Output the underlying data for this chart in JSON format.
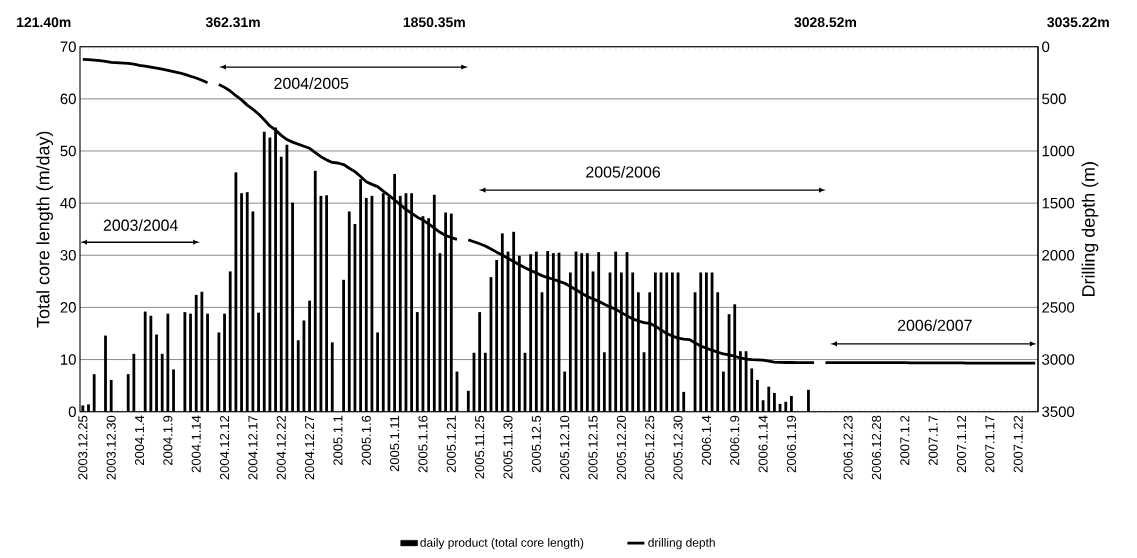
{
  "chart_data": {
    "type": "bar",
    "categories": [
      "2003.12.25",
      null,
      null,
      null,
      null,
      "2003.12.30",
      null,
      null,
      null,
      null,
      "2004.1.4",
      null,
      null,
      null,
      null,
      "2004.1.9",
      null,
      null,
      null,
      null,
      "2004.1.14",
      null,
      null,
      null,
      null,
      "2004.12.12",
      null,
      null,
      null,
      null,
      "2004.12.17",
      null,
      null,
      null,
      null,
      "2004.12.22",
      null,
      null,
      null,
      null,
      "2004.12.27",
      null,
      null,
      null,
      null,
      "2005.1.1",
      null,
      null,
      null,
      null,
      "2005.1.6",
      null,
      null,
      null,
      null,
      "2005.1.11",
      null,
      null,
      null,
      null,
      "2005.1.16",
      null,
      null,
      null,
      null,
      "2005.1.21",
      null,
      null,
      null,
      null,
      "2005.11.25",
      null,
      null,
      null,
      null,
      "2005.11.30",
      null,
      null,
      null,
      null,
      "2005.12.5",
      null,
      null,
      null,
      null,
      "2005.12.10",
      null,
      null,
      null,
      null,
      "2005.12.15",
      null,
      null,
      null,
      null,
      "2005.12.20",
      null,
      null,
      null,
      null,
      "2005.12.25",
      null,
      null,
      null,
      null,
      "2005.12.30",
      null,
      null,
      null,
      null,
      "2006.1.4",
      null,
      null,
      null,
      null,
      "2006.1.9",
      null,
      null,
      null,
      null,
      "2006.1.14",
      null,
      null,
      null,
      null,
      "2006.1.19",
      null,
      null,
      null,
      null,
      null,
      null,
      null,
      null,
      null,
      "2006.12.23",
      null,
      null,
      null,
      null,
      "2006.12.28",
      null,
      null,
      null,
      null,
      "2007.1.2",
      null,
      null,
      null,
      null,
      "2007.1.7",
      null,
      null,
      null,
      null,
      "2007.1.12",
      null,
      null,
      null,
      null,
      "2007.1.17",
      null,
      null,
      null,
      null,
      "2007.1.22",
      null,
      null,
      null
    ],
    "series": [
      {
        "name": "daily product (total core length)",
        "color": "#000000",
        "values": [
          1.2,
          1.4,
          7.2,
          null,
          14.6,
          6.1,
          null,
          null,
          7.2,
          11.1,
          null,
          19.2,
          18.4,
          14.8,
          11.1,
          18.8,
          8.1,
          null,
          19.1,
          18.8,
          22.4,
          23.0,
          18.8,
          null,
          15.2,
          18.8,
          26.9,
          45.9,
          41.9,
          42.1,
          38.4,
          19.0,
          53.7,
          52.6,
          54.5,
          48.9,
          51.2,
          40.1,
          13.7,
          17.5,
          21.3,
          46.2,
          41.4,
          41.5,
          13.3,
          null,
          25.3,
          38.4,
          36.0,
          44.6,
          41.0,
          41.4,
          15.2,
          41.9,
          41.2,
          45.6,
          41.4,
          41.9,
          41.9,
          19.1,
          37.5,
          37.1,
          41.6,
          30.4,
          38.2,
          38.0,
          7.7,
          null,
          4.0,
          11.3,
          19.1,
          11.3,
          25.8,
          29.1,
          34.2,
          30.7,
          34.5,
          29.9,
          11.3,
          30.2,
          30.7,
          22.9,
          30.8,
          30.4,
          30.5,
          7.7,
          26.7,
          30.7,
          30.4,
          30.4,
          26.9,
          30.6,
          11.4,
          26.7,
          30.7,
          26.7,
          30.6,
          26.7,
          22.9,
          11.4,
          22.9,
          26.7,
          26.7,
          26.7,
          26.7,
          26.7,
          3.8,
          null,
          22.9,
          26.7,
          26.7,
          26.7,
          22.9,
          7.7,
          18.7,
          20.6,
          11.6,
          11.6,
          8.3,
          6.1,
          2.2,
          4.8,
          3.6,
          1.5,
          1.9,
          3.0,
          null,
          null,
          4.2,
          null,
          null,
          null,
          null,
          null,
          null,
          null,
          null,
          null,
          null,
          null,
          null,
          null,
          null,
          null,
          null,
          null,
          null,
          null,
          null,
          null,
          null,
          null,
          null,
          null,
          null,
          null,
          null,
          null,
          null,
          null,
          null,
          null,
          null,
          null,
          null,
          null,
          null,
          null,
          null
        ]
      },
      {
        "name": "drilling depth",
        "type": "line",
        "axis": "y2",
        "color": "#000000",
        "values": [
          121,
          124,
          128,
          134,
          140,
          150,
          153,
          156,
          159,
          168,
          178,
          186,
          195,
          205,
          215,
          226,
          238,
          250,
          266,
          283,
          300,
          322,
          345,
          null,
          362,
          390,
          425,
          470,
          510,
          560,
          600,
          645,
          700,
          760,
          800,
          850,
          890,
          915,
          935,
          955,
          974,
          1015,
          1055,
          1085,
          1110,
          1115,
          1130,
          1165,
          1198,
          1245,
          1295,
          1320,
          1342,
          1385,
          1425,
          1470,
          1515,
          1560,
          1597,
          1635,
          1662,
          1700,
          1740,
          1780,
          1810,
          1830,
          1848,
          null,
          1852,
          1870,
          1890,
          1911,
          1940,
          1970,
          1997,
          2030,
          2060,
          2090,
          2120,
          2145,
          2170,
          2195,
          2215,
          2230,
          2250,
          2268,
          2300,
          2330,
          2364,
          2395,
          2420,
          2440,
          2470,
          2495,
          2518,
          2550,
          2580,
          2610,
          2630,
          2645,
          2652,
          2680,
          2715,
          2750,
          2775,
          2795,
          2805,
          2808,
          2840,
          2870,
          2892,
          2910,
          2930,
          2945,
          2956,
          2970,
          2985,
          2995,
          3000,
          3003,
          3005,
          3015,
          3025,
          3027,
          3028,
          3028,
          3029,
          3029,
          3029,
          3029,
          null,
          3030,
          3030,
          3030,
          3030,
          3030,
          3030,
          3030,
          3030,
          3030,
          3030,
          3030,
          3030,
          3030,
          3030,
          3030,
          3032,
          3032,
          3032,
          3032,
          3032,
          3032,
          3032,
          3032,
          3032,
          3032,
          3035,
          3035,
          3035,
          3035,
          3035,
          3035,
          3035,
          3035,
          3035,
          3035,
          3035,
          3035,
          3035
        ]
      }
    ],
    "ylabel": "Total core length (m/day)",
    "y2label": "Drilling depth (m)",
    "ylim": [
      0,
      70
    ],
    "yticks": [
      0,
      10,
      20,
      30,
      40,
      50,
      60,
      70
    ],
    "y2lim": [
      3500,
      0
    ],
    "y2ticks": [
      0,
      500,
      1000,
      1500,
      2000,
      2500,
      3000,
      3500
    ],
    "grid": "y",
    "legend": "bottom",
    "annotations": [
      "121.40m",
      "362.31m",
      "1850.35m",
      "3028.52m",
      "3035.22m",
      "2003/2004",
      "2004/2005",
      "2005/2006",
      "2006/2007"
    ]
  }
}
